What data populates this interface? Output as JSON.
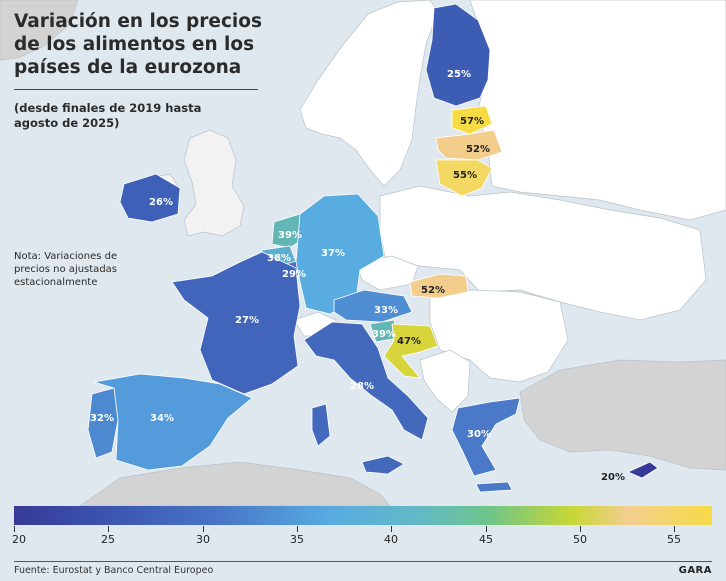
{
  "title": "Variación en los precios de los alimentos en los países de la eurozona",
  "subtitle": "(desde finales de 2019 hasta agosto de 2025)",
  "note": "Nota: Variaciones de precios no ajustadas estacionalmente",
  "footer": "Fuente: Eurostat y Banco Central Europeo",
  "brand": "GARA",
  "map_data": {
    "regions": [
      {
        "name": "Finlandia",
        "value": 25,
        "label": "25%",
        "color": "#3d5db5"
      },
      {
        "name": "Estonia",
        "value": 57,
        "label": "57%",
        "color": "#f6db43"
      },
      {
        "name": "Letonia",
        "value": 52,
        "label": "52%",
        "color": "#f3cd8c"
      },
      {
        "name": "Lituania",
        "value": 55,
        "label": "55%",
        "color": "#f3d964"
      },
      {
        "name": "Irlanda",
        "value": 26,
        "label": "26%",
        "color": "#3e60b8"
      },
      {
        "name": "Países Bajos",
        "value": 39,
        "label": "39%",
        "color": "#62b6b3"
      },
      {
        "name": "Bélgica",
        "value": 38,
        "label": "38%",
        "color": "#5cafd0"
      },
      {
        "name": "Luxemburgo",
        "value": 29,
        "label": "29%",
        "color": "#476fc1"
      },
      {
        "name": "Alemania",
        "value": 37,
        "label": "37%",
        "color": "#59ace0"
      },
      {
        "name": "Francia",
        "value": 27,
        "label": "27%",
        "color": "#4265bc"
      },
      {
        "name": "Eslovaquia",
        "value": 52,
        "label": "52%",
        "color": "#f3cd8c"
      },
      {
        "name": "Austria",
        "value": 33,
        "label": "33%",
        "color": "#4f8ed3"
      },
      {
        "name": "Eslovenia",
        "value": 39,
        "label": "39%",
        "color": "#62b6b3"
      },
      {
        "name": "Croacia",
        "value": 47,
        "label": "47%",
        "color": "#d8d43c"
      },
      {
        "name": "Italia",
        "value": 28,
        "label": "28%",
        "color": "#4369bd"
      },
      {
        "name": "Portugal",
        "value": 32,
        "label": "32%",
        "color": "#4c89d0"
      },
      {
        "name": "España",
        "value": 34,
        "label": "34%",
        "color": "#539bda"
      },
      {
        "name": "Grecia",
        "value": 30,
        "label": "30%",
        "color": "#4a79c8"
      },
      {
        "name": "Chipre",
        "value": 20,
        "label": "20%",
        "color": "#363a96"
      }
    ]
  },
  "legend": {
    "min": 20,
    "max": 57,
    "ticks": [
      "20",
      "25",
      "30",
      "35",
      "40",
      "45",
      "50",
      "55"
    ]
  }
}
